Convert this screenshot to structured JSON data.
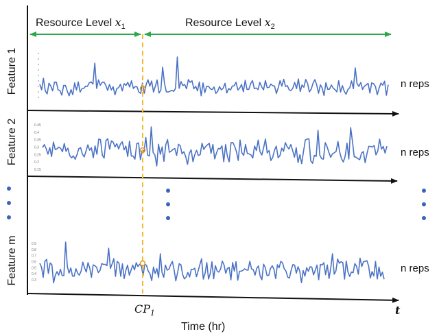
{
  "top_labels": {
    "level1": {
      "text": "Resource Level ",
      "var": "x",
      "sub": "1"
    },
    "level2": {
      "text": "Resource Level ",
      "var": "x",
      "sub": "2"
    }
  },
  "features": [
    {
      "label": "Feature 1",
      "reps": "n reps",
      "ticks": []
    },
    {
      "label": "Feature 2",
      "reps": "n reps",
      "ticks": [
        "0.45",
        "0.4",
        "0.35",
        "0.3",
        "0.25",
        "0.2",
        "0.15"
      ]
    },
    {
      "label": "Feature m",
      "reps": "n reps",
      "ticks": [
        "0.9",
        "0.8",
        "0.7",
        "0.6",
        "0.5",
        "0.4",
        "0.3"
      ]
    }
  ],
  "changepoint": {
    "var": "CP",
    "sub": "1"
  },
  "axis": {
    "x_label": "Time (hr)",
    "t_label": "t"
  },
  "colors": {
    "series": "#4a72c4",
    "arrow_green": "#2aa84a",
    "changepoint": "#f5b82e",
    "axis": "#111111",
    "dots": "#3b64b8"
  }
}
